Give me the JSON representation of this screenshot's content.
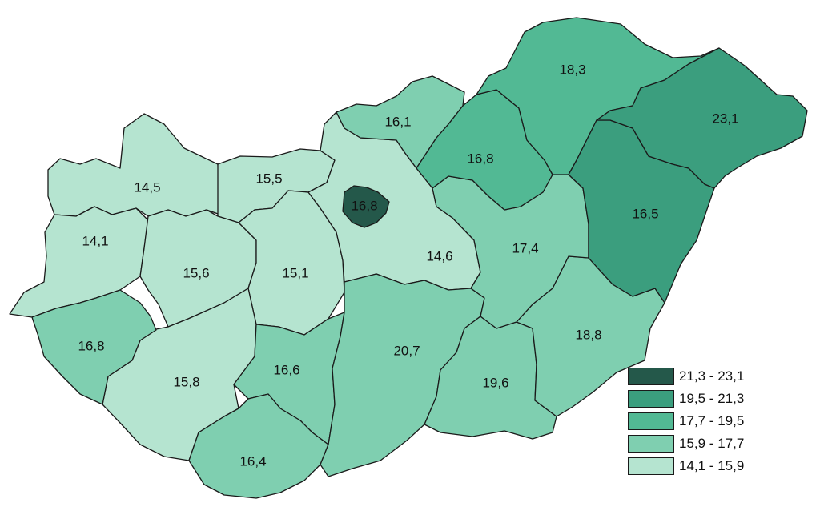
{
  "map": {
    "classes": [
      {
        "label": "21,3 - 23,1",
        "color": "#24584a"
      },
      {
        "label": "19,5 - 21,3",
        "color": "#3b9e7e"
      },
      {
        "label": "17,7 - 19,5",
        "color": "#52b994"
      },
      {
        "label": "15,9 - 17,7",
        "color": "#7fcfb0"
      },
      {
        "label": "14,1 - 15,9",
        "color": "#b5e4d0"
      }
    ],
    "regions": [
      {
        "id": "gyor-moson-sopron",
        "value": "14,5",
        "class": 4
      },
      {
        "id": "komarom-esztergom",
        "value": "15,5",
        "class": 4
      },
      {
        "id": "vas",
        "value": "14,1",
        "class": 4
      },
      {
        "id": "veszprem",
        "value": "15,6",
        "class": 4
      },
      {
        "id": "fejer",
        "value": "15,1",
        "class": 4
      },
      {
        "id": "pest",
        "value": "14,6",
        "class": 4
      },
      {
        "id": "somogy",
        "value": "15,8",
        "class": 4
      },
      {
        "id": "zala",
        "value": "16,8",
        "class": 3
      },
      {
        "id": "tolna",
        "value": "16,6",
        "class": 3
      },
      {
        "id": "baranya",
        "value": "16,4",
        "class": 3
      },
      {
        "id": "budapest",
        "value": "16,8",
        "class": 3
      },
      {
        "id": "nograd",
        "value": "16,1",
        "class": 3
      },
      {
        "id": "heves",
        "value": "16,8",
        "class": 3
      },
      {
        "id": "jasz-nagykun-szolnok",
        "value": "17,4",
        "class": 3
      },
      {
        "id": "hajdu-bihar",
        "value": "16,5",
        "class": 3
      },
      {
        "id": "borsod-abauj-zemplen",
        "value": "18,3",
        "class": 2
      },
      {
        "id": "bekes",
        "value": "18,8",
        "class": 2
      },
      {
        "id": "bacs-kiskun",
        "value": "20,7",
        "class": 1
      },
      {
        "id": "csongrad",
        "value": "19,6",
        "class": 1
      },
      {
        "id": "szabolcs-szatmar-bereg",
        "value": "23,1",
        "class": 0
      }
    ]
  }
}
